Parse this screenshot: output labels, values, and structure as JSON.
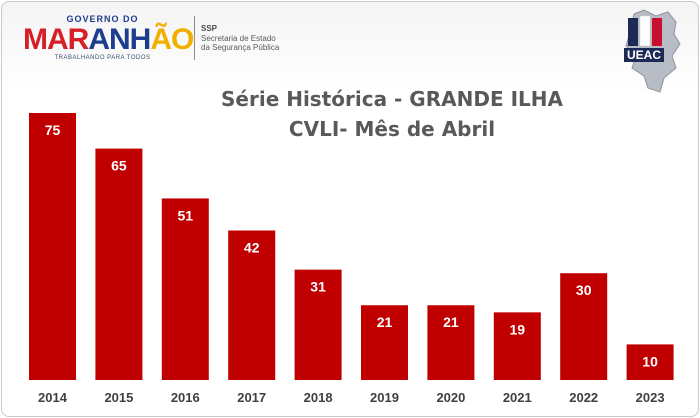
{
  "header": {
    "gov_top": "GOVERNO DO",
    "gov_main_part1": "MAR",
    "gov_main_part2": "ANH",
    "gov_main_part3": "ÃO",
    "gov_bottom": "TRABALHANDO PARA TODOS",
    "ssp_abbr": "SSP",
    "ssp_line1": "Secretaria de Estado",
    "ssp_line2": "da Segurança Pública",
    "ueac_label": "UEAC"
  },
  "colors": {
    "bar": "#c00000",
    "value_label": "#ffffff",
    "title": "#595959",
    "tick": "#404040"
  },
  "chart_data": {
    "type": "bar",
    "title_line1": "Série Histórica - GRANDE ILHA",
    "title_line2": "CVLI- Mês de Abril",
    "categories": [
      "2014",
      "2015",
      "2016",
      "2017",
      "2018",
      "2019",
      "2020",
      "2021",
      "2022",
      "2023"
    ],
    "values": [
      75,
      65,
      51,
      42,
      31,
      21,
      21,
      19,
      30,
      10
    ],
    "value_labels": [
      "75",
      "65",
      "51",
      "42",
      "31",
      "21",
      "21",
      "19",
      "30",
      "10"
    ],
    "ylim": [
      0,
      75
    ],
    "xlabel": "",
    "ylabel": "",
    "grid": false,
    "legend": false,
    "data_labels": "inside-top"
  }
}
